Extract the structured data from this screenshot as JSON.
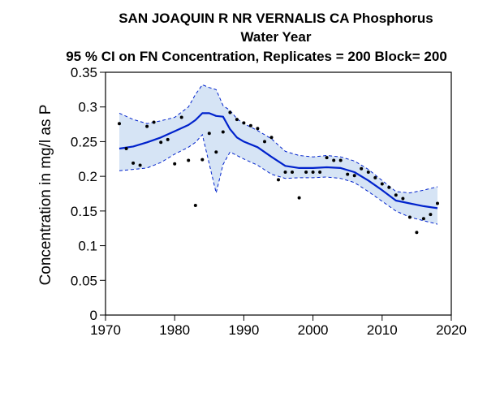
{
  "chart_data": {
    "type": "line",
    "title_line1": "SAN JOAQUIN R NR VERNALIS CA   Phosphorus",
    "title_line2": "Water Year",
    "title_line3": "95 % CI on FN Concentration, Replicates = 200 Block= 200",
    "xlabel": "",
    "ylabel": "Concentration in mg/l as P",
    "xlim": [
      1970,
      2020
    ],
    "ylim": [
      0,
      0.35
    ],
    "x_ticks": [
      "1970",
      "1980",
      "1990",
      "2000",
      "2010",
      "2020"
    ],
    "y_ticks": [
      "0",
      "0.05",
      "0.1",
      "0.15",
      "0.2",
      "0.25",
      "0.3",
      "0.35"
    ],
    "grid": false,
    "colors": {
      "fn_line": "#0022cc",
      "ci_band_fill": "#d6e4f5",
      "ci_band_edge": "#0022cc",
      "observed_points": "#000000"
    },
    "series": [
      {
        "kind": "flow_normalized_concentration",
        "x": [
          1972,
          1974,
          1976,
          1978,
          1980,
          1982,
          1983,
          1984,
          1985,
          1986,
          1987,
          1988,
          1989,
          1990,
          1992,
          1994,
          1996,
          1998,
          2000,
          2002,
          2004,
          2006,
          2008,
          2010,
          2012,
          2014,
          2016,
          2018
        ],
        "y": [
          0.24,
          0.243,
          0.249,
          0.256,
          0.265,
          0.274,
          0.281,
          0.291,
          0.291,
          0.287,
          0.286,
          0.268,
          0.256,
          0.25,
          0.242,
          0.228,
          0.215,
          0.212,
          0.212,
          0.213,
          0.212,
          0.206,
          0.194,
          0.18,
          0.165,
          0.161,
          0.157,
          0.154
        ]
      },
      {
        "kind": "ci_upper",
        "x": [
          1972,
          1974,
          1976,
          1978,
          1980,
          1982,
          1983,
          1984,
          1985,
          1986,
          1987,
          1988,
          1989,
          1990,
          1992,
          1994,
          1996,
          1998,
          2000,
          2002,
          2004,
          2006,
          2008,
          2010,
          2012,
          2014,
          2016,
          2018
        ],
        "y": [
          0.291,
          0.282,
          0.276,
          0.28,
          0.285,
          0.3,
          0.318,
          0.332,
          0.328,
          0.325,
          0.302,
          0.295,
          0.283,
          0.276,
          0.266,
          0.254,
          0.236,
          0.23,
          0.228,
          0.23,
          0.228,
          0.222,
          0.21,
          0.194,
          0.178,
          0.176,
          0.18,
          0.185
        ]
      },
      {
        "kind": "ci_lower",
        "x": [
          1972,
          1974,
          1976,
          1978,
          1980,
          1982,
          1983,
          1984,
          1985,
          1986,
          1987,
          1988,
          1989,
          1990,
          1992,
          1994,
          1996,
          1998,
          2000,
          2002,
          2004,
          2006,
          2008,
          2010,
          2012,
          2014,
          2016,
          2018
        ],
        "y": [
          0.208,
          0.21,
          0.212,
          0.22,
          0.232,
          0.242,
          0.249,
          0.26,
          0.218,
          0.176,
          0.217,
          0.235,
          0.23,
          0.225,
          0.216,
          0.203,
          0.197,
          0.198,
          0.198,
          0.199,
          0.197,
          0.191,
          0.178,
          0.164,
          0.15,
          0.141,
          0.136,
          0.131
        ]
      },
      {
        "kind": "observed",
        "x": [
          1972,
          1973,
          1974,
          1975,
          1976,
          1977,
          1978,
          1979,
          1980,
          1981,
          1982,
          1983,
          1984,
          1985,
          1986,
          1987,
          1988,
          1989,
          1990,
          1991,
          1992,
          1993,
          1994,
          1995,
          1996,
          1997,
          1998,
          1999,
          2000,
          2001,
          2002,
          2003,
          2004,
          2005,
          2006,
          2007,
          2008,
          2009,
          2010,
          2011,
          2012,
          2013,
          2014,
          2015,
          2016,
          2017,
          2018
        ],
        "y": [
          0.276,
          0.24,
          0.219,
          0.216,
          0.272,
          0.278,
          0.249,
          0.253,
          0.218,
          0.285,
          0.223,
          0.158,
          0.224,
          0.262,
          0.235,
          0.264,
          0.292,
          0.282,
          0.277,
          0.273,
          0.269,
          0.25,
          0.256,
          0.195,
          0.206,
          0.206,
          0.169,
          0.206,
          0.206,
          0.206,
          0.227,
          0.223,
          0.223,
          0.203,
          0.201,
          0.211,
          0.206,
          0.198,
          0.189,
          0.184,
          0.173,
          0.168,
          0.141,
          0.119,
          0.139,
          0.145,
          0.161
        ]
      }
    ]
  }
}
